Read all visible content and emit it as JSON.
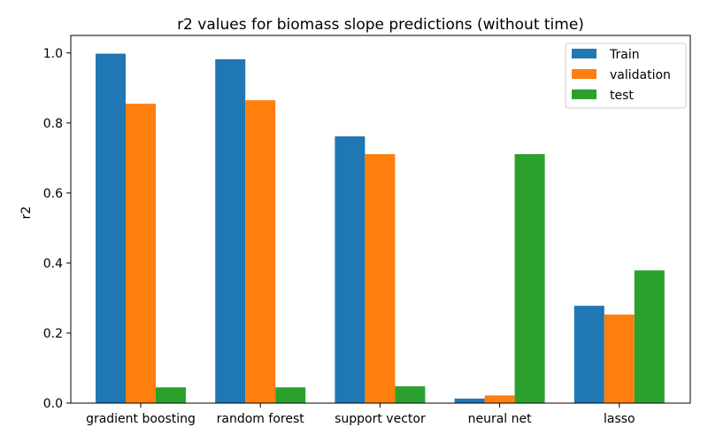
{
  "chart_data": {
    "type": "bar",
    "title": "r2 values for biomass slope predictions (without time)",
    "xlabel": "",
    "ylabel": "r2",
    "categories": [
      "gradient boosting",
      "random forest",
      "support vector",
      "neural net",
      "lasso"
    ],
    "series": [
      {
        "name": "Train",
        "color": "#1f77b4",
        "values": [
          0.998,
          0.982,
          0.762,
          0.013,
          0.278
        ]
      },
      {
        "name": "validation",
        "color": "#ff7f0e",
        "values": [
          0.855,
          0.865,
          0.711,
          0.022,
          0.253
        ]
      },
      {
        "name": "test",
        "color": "#2ca02c",
        "values": [
          0.045,
          0.045,
          0.048,
          0.711,
          0.379
        ]
      }
    ],
    "ylim": [
      0,
      1.05
    ],
    "yticks": [
      0.0,
      0.2,
      0.4,
      0.6,
      0.8,
      1.0
    ],
    "ytick_labels": [
      "0.0",
      "0.2",
      "0.4",
      "0.6",
      "0.8",
      "1.0"
    ],
    "grid": false,
    "legend_position": "top-right"
  }
}
